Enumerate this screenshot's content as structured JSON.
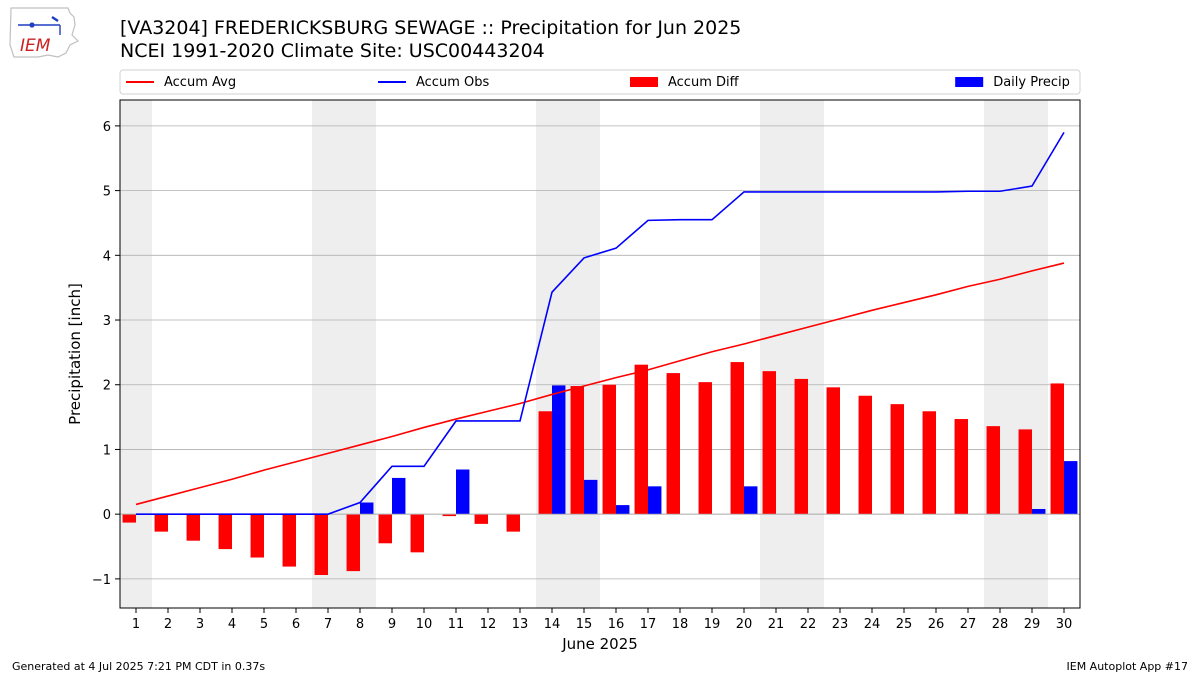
{
  "header": {
    "title_line1": "[VA3204] FREDERICKSBURG SEWAGE :: Precipitation for Jun 2025",
    "title_line2": "NCEI 1991-2020 Climate Site: USC00443204",
    "logo_text": "IEM"
  },
  "footer": {
    "left": "Generated at 4 Jul 2025 7:21 PM CDT in 0.37s",
    "right": "IEM Autoplot App #17"
  },
  "colors": {
    "accum_avg": "#ff0000",
    "accum_obs": "#0000ff",
    "accum_diff": "#ff0000",
    "daily_precip": "#0000ff",
    "weekend_shade": "#eeeeee",
    "grid": "#b0b0b0"
  },
  "chart_data": {
    "type": "bar",
    "xlabel": "June 2025",
    "ylabel": "Precipitation [inch]",
    "ylim": [
      -1.45,
      6.4
    ],
    "yticks": [
      -1,
      0,
      1,
      2,
      3,
      4,
      5,
      6
    ],
    "ytick_labels": [
      "−1",
      "0",
      "1",
      "2",
      "3",
      "4",
      "5",
      "6"
    ],
    "x": [
      1,
      2,
      3,
      4,
      5,
      6,
      7,
      8,
      9,
      10,
      11,
      12,
      13,
      14,
      15,
      16,
      17,
      18,
      19,
      20,
      21,
      22,
      23,
      24,
      25,
      26,
      27,
      28,
      29,
      30
    ],
    "grid": "horizontal",
    "legend_position": "top",
    "shaded_days": [
      1,
      7,
      8,
      14,
      15,
      21,
      22,
      28,
      29
    ],
    "series": [
      {
        "name": "Accum Avg",
        "kind": "line",
        "color": "#ff0000",
        "values": [
          0.15,
          0.28,
          0.41,
          0.54,
          0.68,
          0.81,
          0.94,
          1.07,
          1.2,
          1.34,
          1.47,
          1.59,
          1.71,
          1.85,
          1.98,
          2.11,
          2.23,
          2.37,
          2.51,
          2.63,
          2.76,
          2.89,
          3.02,
          3.15,
          3.27,
          3.39,
          3.52,
          3.63,
          3.76,
          3.88
        ]
      },
      {
        "name": "Accum Obs",
        "kind": "line",
        "color": "#0000ff",
        "values": [
          0,
          0,
          0,
          0,
          0,
          0,
          0,
          0.18,
          0.74,
          0.74,
          1.44,
          1.44,
          1.44,
          3.43,
          3.96,
          4.11,
          4.54,
          4.55,
          4.55,
          4.98,
          4.98,
          4.98,
          4.98,
          4.98,
          4.98,
          4.98,
          4.99,
          4.99,
          5.07,
          5.9
        ]
      },
      {
        "name": "Accum Diff",
        "kind": "bar",
        "color": "#ff0000",
        "values": [
          -0.13,
          -0.27,
          -0.41,
          -0.54,
          -0.67,
          -0.81,
          -0.94,
          -0.88,
          -0.45,
          -0.59,
          -0.03,
          -0.15,
          -0.27,
          1.59,
          1.98,
          2.0,
          2.31,
          2.18,
          2.04,
          2.35,
          2.21,
          2.09,
          1.96,
          1.83,
          1.7,
          1.59,
          1.47,
          1.36,
          1.31,
          2.02
        ]
      },
      {
        "name": "Daily Precip",
        "kind": "bar",
        "color": "#0000ff",
        "values": [
          0,
          0,
          0,
          0,
          0,
          0,
          0,
          0.18,
          0.56,
          0,
          0.69,
          0,
          0,
          1.99,
          0.53,
          0.14,
          0.43,
          0,
          0,
          0.43,
          0,
          0,
          0,
          0,
          0,
          0,
          0,
          0,
          0.08,
          0.82
        ]
      }
    ]
  }
}
